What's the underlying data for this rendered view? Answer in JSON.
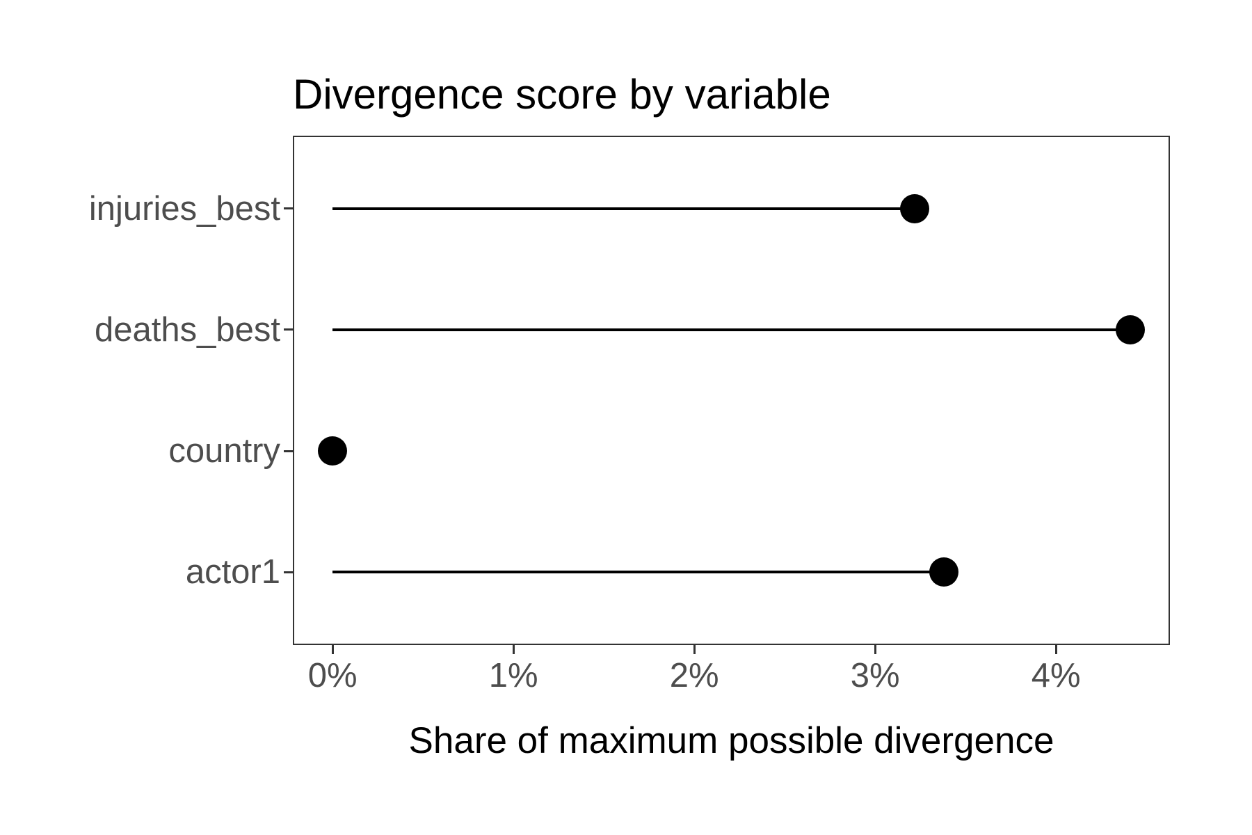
{
  "chart_data": {
    "type": "lollipop",
    "orientation": "horizontal",
    "title": "Divergence score by variable",
    "xlabel": "Share of maximum possible divergence",
    "ylabel": "",
    "categories": [
      "injuries_best",
      "deaths_best",
      "country",
      "actor1"
    ],
    "values": [
      3.22,
      4.41,
      0.0,
      3.38
    ],
    "value_unit": "percent",
    "x_ticks": [
      0,
      1,
      2,
      3,
      4
    ],
    "x_tick_labels": [
      "0%",
      "1%",
      "2%",
      "3%",
      "4%"
    ],
    "xlim": [
      -0.22,
      4.63
    ],
    "grid": false,
    "legend": "none",
    "colors": {
      "point": "#000000",
      "segment": "#000000",
      "panel_border": "#333333",
      "tick": "#333333",
      "axis_text": "#4d4d4d",
      "title_text": "#000000",
      "background": "#ffffff"
    }
  }
}
